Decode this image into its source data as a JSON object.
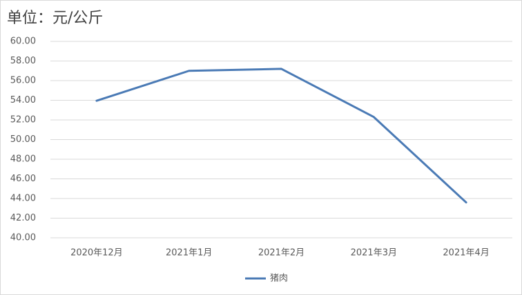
{
  "chart_data": {
    "type": "line",
    "title": "单位：元/公斤",
    "categories": [
      "2020年12月",
      "2021年1月",
      "2021年2月",
      "2021年3月",
      "2021年4月"
    ],
    "series": [
      {
        "name": "猪肉",
        "color": "#4a7ab5",
        "values": [
          53.95,
          57.0,
          57.2,
          52.3,
          43.6
        ]
      }
    ],
    "ylim": [
      40,
      60
    ],
    "yticks": [
      {
        "value": 40,
        "label": "40.00"
      },
      {
        "value": 42,
        "label": "42.00"
      },
      {
        "value": 44,
        "label": "44.00"
      },
      {
        "value": 46,
        "label": "46.00"
      },
      {
        "value": 48,
        "label": "48.00"
      },
      {
        "value": 50,
        "label": "50.00"
      },
      {
        "value": 52,
        "label": "52.00"
      },
      {
        "value": 54,
        "label": "54.00"
      },
      {
        "value": 56,
        "label": "56.00"
      },
      {
        "value": 58,
        "label": "58.00"
      },
      {
        "value": 60,
        "label": "60.00"
      }
    ],
    "grid": true,
    "legend": "bottom"
  }
}
